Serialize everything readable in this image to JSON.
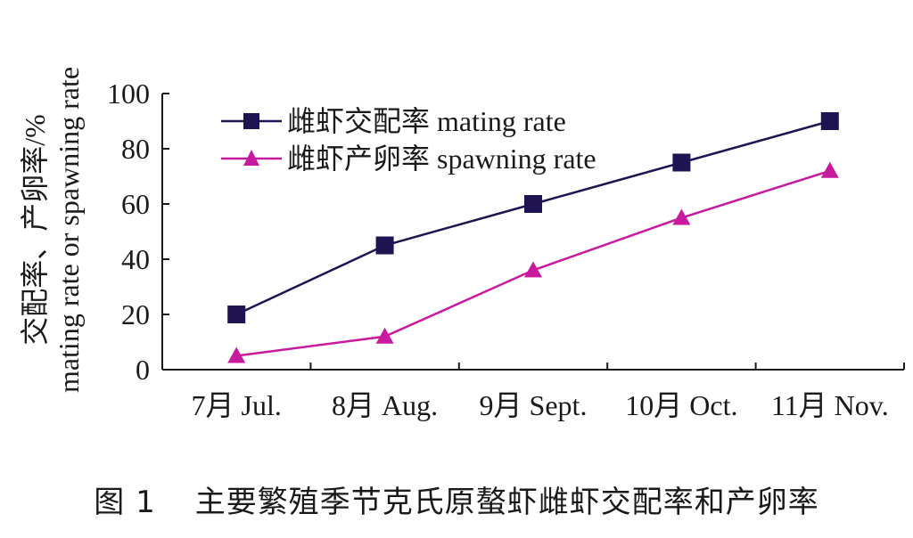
{
  "chart_data": {
    "type": "line",
    "categories": [
      "7月 Jul.",
      "8月 Aug.",
      "9月 Sept.",
      "10月 Oct.",
      "11月 Nov."
    ],
    "ylabel_line1": "交配率、产卵率/%",
    "ylabel_line2": "mating rate or spawning rate",
    "ylim": [
      0,
      100
    ],
    "yticks": [
      0,
      20,
      40,
      60,
      80,
      100
    ],
    "grid": false,
    "legend_position": "top-left",
    "series": [
      {
        "name": "雌虾交配率  mating rate",
        "marker": "square",
        "color": "#1f1451",
        "values": [
          20,
          45,
          60,
          75,
          90
        ]
      },
      {
        "name": "雌虾产卵率  spawning rate",
        "marker": "triangle",
        "color": "#c81a9e",
        "values": [
          5,
          12,
          36,
          55,
          72
        ]
      }
    ]
  },
  "caption": {
    "number": "图 1",
    "text": "主要繁殖季节克氏原螯虾雌虾交配率和产卵率"
  }
}
